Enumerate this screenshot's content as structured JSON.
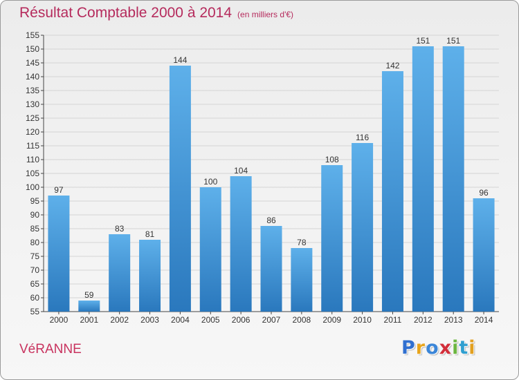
{
  "header": {
    "title": "Résultat Comptable 2000 à 2014",
    "subtitle": "(en milliers d'€)"
  },
  "footer": {
    "commune": "VéRANNE",
    "brand": "Proxiti",
    "brand_letters": [
      "P",
      "r",
      "o",
      "x",
      "i",
      "t",
      "i"
    ],
    "brand_colors": [
      "#2f6fd0",
      "#e8a51d",
      "#3b86d8",
      "#d22e3a",
      "#6cb640",
      "#2f9fd0",
      "#e2a020"
    ]
  },
  "colors": {
    "bar_top": "#5eb0ea",
    "bar_bottom": "#2a78bd",
    "title": "#b52a5c"
  },
  "chart_data": {
    "type": "bar",
    "categories": [
      "2000",
      "2001",
      "2002",
      "2003",
      "2004",
      "2005",
      "2006",
      "2007",
      "2008",
      "2009",
      "2010",
      "2011",
      "2012",
      "2013",
      "2014"
    ],
    "values": [
      97,
      59,
      83,
      81,
      144,
      100,
      104,
      86,
      78,
      108,
      116,
      142,
      151,
      151,
      96
    ],
    "ylim": [
      55,
      155
    ],
    "yticks": [
      55,
      60,
      65,
      70,
      75,
      80,
      85,
      90,
      95,
      100,
      105,
      110,
      115,
      120,
      125,
      130,
      135,
      140,
      145,
      150,
      155
    ],
    "title": "Résultat Comptable 2000 à 2014",
    "xlabel": "",
    "ylabel": "",
    "grid": true,
    "data_labels": true
  }
}
